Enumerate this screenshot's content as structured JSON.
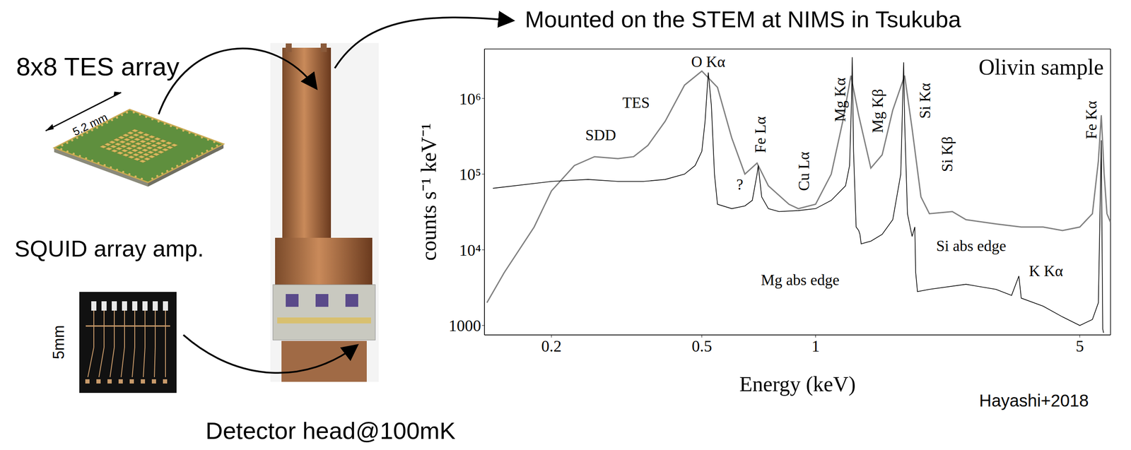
{
  "chart_data": {
    "type": "line",
    "title": "Olivin sample",
    "x_label": "Energy (keV)",
    "y_label": "counts s⁻¹ keV⁻¹",
    "log": true,
    "grid": false,
    "xlim": [
      0.133,
      6.03
    ],
    "ylim": [
      750,
      4500000
    ],
    "xticks": [
      0.2,
      0.5,
      1,
      5
    ],
    "yticks": [
      1000,
      {
        "value": 10000,
        "label": "10⁴"
      },
      {
        "value": 100000,
        "label": "10⁵"
      },
      {
        "value": 1000000,
        "label": "10⁶"
      }
    ],
    "series": [
      {
        "name": "SDD",
        "color": "#808080",
        "x": [
          0.135,
          0.15,
          0.18,
          0.2,
          0.23,
          0.26,
          0.3,
          0.33,
          0.36,
          0.4,
          0.45,
          0.5,
          0.55,
          0.6,
          0.65,
          0.7,
          0.75,
          0.85,
          0.9,
          1.0,
          1.1,
          1.18,
          1.24,
          1.3,
          1.4,
          1.5,
          1.6,
          1.72,
          1.8,
          1.9,
          2.0,
          2.3,
          2.5,
          3.0,
          3.5,
          4.0,
          4.5,
          5.0,
          5.4,
          5.6,
          5.7,
          5.8,
          5.9,
          6.03
        ],
        "values": [
          2000,
          5000,
          20000,
          60000,
          130000,
          170000,
          160000,
          170000,
          240000,
          500000,
          1500000,
          2300000,
          1400000,
          300000,
          100000,
          140000,
          70000,
          40000,
          35000,
          40000,
          100000,
          500000,
          2000000,
          600000,
          120000,
          180000,
          700000,
          2000000,
          400000,
          50000,
          30000,
          32000,
          25000,
          22000,
          20000,
          20000,
          18000,
          20000,
          30000,
          150000,
          600000,
          100000,
          30000,
          23000
        ]
      },
      {
        "name": "TES",
        "color": "#000000",
        "x": [
          0.14,
          0.2,
          0.25,
          0.3,
          0.35,
          0.4,
          0.45,
          0.48,
          0.5,
          0.51,
          0.52,
          0.53,
          0.54,
          0.55,
          0.6,
          0.65,
          0.68,
          0.7,
          0.705,
          0.72,
          0.75,
          0.8,
          0.9,
          1.0,
          1.1,
          1.2,
          1.23,
          1.245,
          1.25,
          1.26,
          1.28,
          1.3,
          1.31,
          1.32,
          1.4,
          1.5,
          1.6,
          1.68,
          1.71,
          1.72,
          1.75,
          1.8,
          1.83,
          1.84,
          1.86,
          2.0,
          2.5,
          3.0,
          3.3,
          3.45,
          3.5,
          4.0,
          4.5,
          5.0,
          5.4,
          5.6,
          5.7,
          5.75,
          5.78
        ],
        "values": [
          65000,
          80000,
          85000,
          80000,
          80000,
          85000,
          100000,
          130000,
          200000,
          500000,
          2200000,
          800000,
          100000,
          40000,
          35000,
          38000,
          45000,
          100000,
          130000,
          50000,
          35000,
          32000,
          33000,
          35000,
          45000,
          70000,
          130000,
          1000000,
          3500000,
          200000,
          20000,
          18000,
          16000,
          12000,
          13000,
          16000,
          25000,
          100000,
          3000000,
          500000,
          30000,
          15000,
          20000,
          5000,
          2800,
          3000,
          3500,
          3000,
          2500,
          4500,
          2300,
          1800,
          1300,
          1000,
          1200,
          2000,
          280000,
          900,
          800
        ]
      }
    ],
    "line_labels": [
      {
        "text": "Fe Lα",
        "x": 0.715,
        "y": 190000
      },
      {
        "text": "Cu Lα",
        "x": 0.93,
        "y": 60000
      },
      {
        "text": "Mg Kα",
        "x": 1.16,
        "y": 490000
      },
      {
        "text": "Mg Kβ",
        "x": 1.46,
        "y": 350000
      },
      {
        "text": "Si Kα",
        "x": 1.95,
        "y": 540000
      },
      {
        "text": "Si Kβ",
        "x": 2.23,
        "y": 107000
      },
      {
        "text": "Fe Kα",
        "x": 5.36,
        "y": 290000
      }
    ],
    "annotations": [
      {
        "text": "O Kα",
        "x": 0.52,
        "y": 2600000
      },
      {
        "text": "?",
        "x": 0.63,
        "y": 62000
      },
      {
        "text": "K Kα",
        "x": 4.07,
        "y": 4500
      },
      {
        "text": "Mg abs edge",
        "x": 0.91,
        "y": 3400
      },
      {
        "text": "Si abs edge",
        "x": 2.58,
        "y": 9600
      },
      {
        "text": "TES",
        "x": 0.335,
        "y": 750000
      },
      {
        "text": "SDD",
        "x": 0.27,
        "y": 280000
      }
    ]
  },
  "slide": {
    "tes_label": "8x8 TES array",
    "tes_size": "5.2 mm",
    "squid_label": "SQUID array amp.",
    "squid_size": "5mm",
    "head_label": "Detector head@100mK",
    "mounted": "Mounted on the STEM at NIMS in Tsukuba",
    "credit": "Hayashi+2018"
  }
}
